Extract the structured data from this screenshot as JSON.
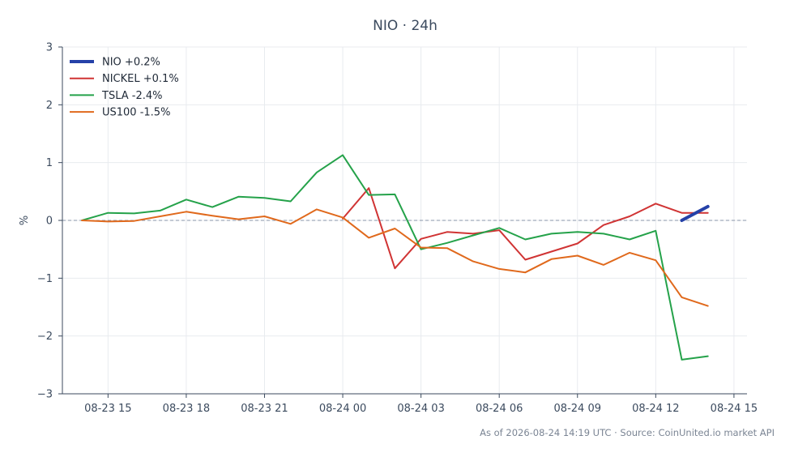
{
  "chart_data": {
    "type": "line",
    "title": "NIO · 24h",
    "ylabel": "%",
    "xlabel": "",
    "ylim": [
      -3,
      3
    ],
    "y_ticks": [
      3,
      2,
      1,
      0,
      -1,
      -2,
      -3
    ],
    "y_tick_labels": [
      "3",
      "2",
      "1",
      "0",
      "−1",
      "−2",
      "−3"
    ],
    "x_range_hours": [
      -0.75,
      25.5
    ],
    "x_ticks": [
      {
        "hour": 1,
        "label": "08-23 15"
      },
      {
        "hour": 4,
        "label": "08-23 18"
      },
      {
        "hour": 7,
        "label": "08-23 21"
      },
      {
        "hour": 10,
        "label": "08-24 00"
      },
      {
        "hour": 13,
        "label": "08-24 03"
      },
      {
        "hour": 16,
        "label": "08-24 06"
      },
      {
        "hour": 19,
        "label": "08-24 09"
      },
      {
        "hour": 22,
        "label": "08-24 12"
      },
      {
        "hour": 25,
        "label": "08-24 15"
      }
    ],
    "x_origin": "2026-08-23 14:00",
    "grid": true,
    "zero_line": true,
    "legend_position": "top-left",
    "series": [
      {
        "name": "NIO +0.2%",
        "color": "#2541a8",
        "width": 4,
        "x": [
          23,
          24
        ],
        "values": [
          0.0,
          0.24
        ]
      },
      {
        "name": "NICKEL +0.1%",
        "color": "#d03434",
        "width": 2,
        "x": [
          10,
          11,
          12,
          13,
          14,
          15,
          16,
          17,
          18,
          19,
          20,
          21,
          22,
          23,
          24
        ],
        "values": [
          0.03,
          0.56,
          -0.83,
          -0.32,
          -0.2,
          -0.23,
          -0.17,
          -0.68,
          -0.54,
          -0.4,
          -0.08,
          0.07,
          0.29,
          0.13,
          0.13
        ]
      },
      {
        "name": "TSLA -2.4%",
        "color": "#25a24a",
        "width": 2,
        "x": [
          0,
          1,
          2,
          3,
          4,
          5,
          6,
          7,
          8,
          9,
          10,
          11,
          12,
          13,
          14,
          15,
          16,
          17,
          18,
          19,
          20,
          21,
          22,
          23,
          24
        ],
        "values": [
          0.0,
          0.13,
          0.12,
          0.17,
          0.36,
          0.23,
          0.41,
          0.39,
          0.33,
          0.83,
          1.13,
          0.44,
          0.45,
          -0.5,
          -0.39,
          -0.26,
          -0.13,
          -0.33,
          -0.23,
          -0.2,
          -0.23,
          -0.33,
          -0.18,
          -2.41,
          -2.35
        ]
      },
      {
        "name": "US100 -1.5%",
        "color": "#e0691c",
        "width": 2,
        "x": [
          0,
          1,
          2,
          3,
          4,
          5,
          6,
          7,
          8,
          9,
          10,
          11,
          12,
          13,
          14,
          15,
          16,
          17,
          18,
          19,
          20,
          21,
          22,
          23,
          24
        ],
        "values": [
          0.0,
          -0.02,
          -0.01,
          0.07,
          0.15,
          0.08,
          0.02,
          0.07,
          -0.06,
          0.19,
          0.05,
          -0.3,
          -0.14,
          -0.47,
          -0.48,
          -0.71,
          -0.84,
          -0.9,
          -0.67,
          -0.61,
          -0.77,
          -0.56,
          -0.69,
          -1.33,
          -1.48
        ]
      }
    ],
    "footer": "As of 2026-08-24 14:19 UTC · Source: CoinUnited.io market API"
  }
}
